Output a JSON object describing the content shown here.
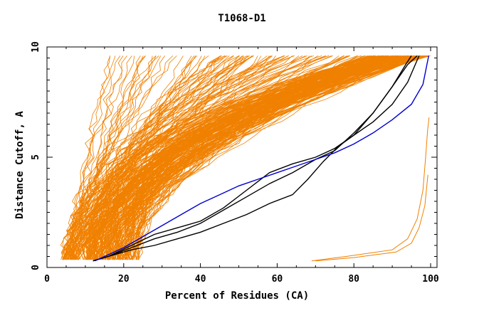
{
  "chart_data": {
    "type": "line",
    "title": "T1068-D1",
    "xlabel": "Percent of Residues (CA)",
    "ylabel": "Distance Cutoff, A",
    "xlim": [
      0,
      100
    ],
    "ylim": [
      0,
      10
    ],
    "x_ticks": [
      0,
      20,
      40,
      60,
      80,
      100
    ],
    "y_ticks": [
      0,
      5,
      10
    ],
    "colors": {
      "background_models": "#f08000",
      "highlight_blue": "#0000d0",
      "highlight_black": "#000000",
      "axes": "#000000"
    },
    "highlight_series": [
      {
        "color": "#0000d0",
        "x": [
          12.5,
          15,
          20,
          25,
          30,
          35,
          40,
          45,
          50,
          55,
          60,
          65,
          70,
          75,
          80,
          85,
          90,
          95,
          98,
          99.5
        ],
        "y": [
          0.3,
          0.5,
          0.9,
          1.4,
          1.9,
          2.4,
          2.9,
          3.3,
          3.7,
          4.0,
          4.3,
          4.6,
          4.9,
          5.2,
          5.6,
          6.1,
          6.7,
          7.4,
          8.3,
          9.6
        ]
      },
      {
        "color": "#000000",
        "x": [
          12,
          16,
          22,
          28,
          34,
          40,
          46,
          52,
          58,
          64,
          70,
          75,
          80,
          85,
          90,
          93.5,
          95
        ],
        "y": [
          0.3,
          0.5,
          1.0,
          1.5,
          1.8,
          2.1,
          2.7,
          3.5,
          4.3,
          4.7,
          5.0,
          5.4,
          6.0,
          7.0,
          8.2,
          9.2,
          9.6
        ]
      },
      {
        "color": "#000000",
        "x": [
          12,
          16,
          22,
          28,
          34,
          40,
          46,
          52,
          58,
          64,
          70,
          75,
          80,
          85,
          90,
          94,
          96.5
        ],
        "y": [
          0.3,
          0.5,
          0.9,
          1.3,
          1.6,
          2.0,
          2.6,
          3.2,
          3.8,
          4.3,
          4.9,
          5.3,
          6.1,
          7.0,
          8.2,
          9.2,
          9.6
        ]
      },
      {
        "color": "#000000",
        "x": [
          12,
          16,
          22,
          28,
          34,
          40,
          46,
          52,
          58,
          64,
          68,
          72,
          76,
          80,
          85,
          90,
          94,
          97
        ],
        "y": [
          0.3,
          0.5,
          0.8,
          1.0,
          1.3,
          1.6,
          2.0,
          2.4,
          2.9,
          3.3,
          4.0,
          4.8,
          5.5,
          6.0,
          6.6,
          7.4,
          8.4,
          9.6
        ]
      }
    ]
  }
}
